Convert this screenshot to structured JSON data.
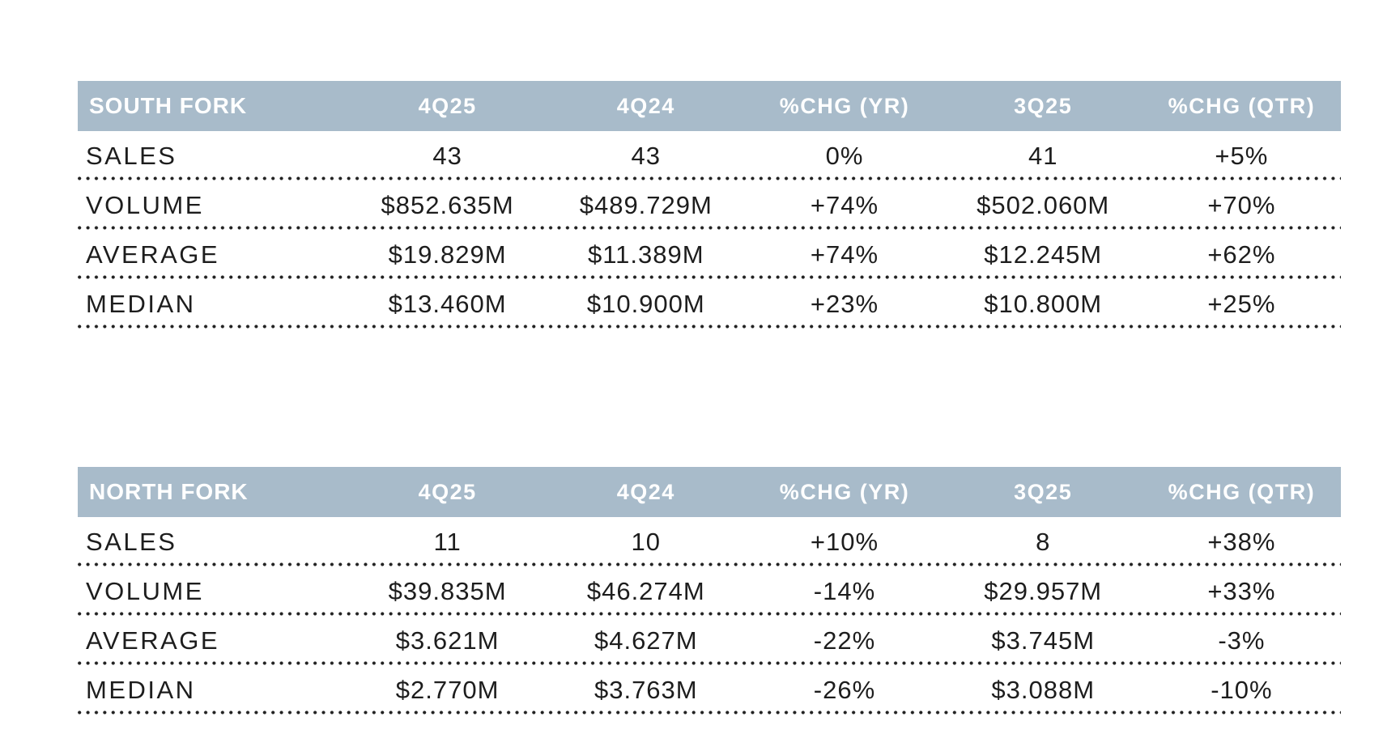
{
  "colors": {
    "page_bg": "#ffffff",
    "header_bg": "#a8bbca",
    "header_text": "#ffffff",
    "body_text": "#1d1d1d",
    "dots": "#222222"
  },
  "chart_data": [
    {
      "type": "table",
      "title": "SOUTH FORK",
      "columns": [
        "4Q25",
        "4Q24",
        "%CHG (YR)",
        "3Q25",
        "%CHG (QTR)"
      ],
      "rows": [
        {
          "label": "SALES",
          "values": [
            "43",
            "43",
            "0%",
            "41",
            "+5%"
          ]
        },
        {
          "label": "VOLUME",
          "values": [
            "$852.635M",
            "$489.729M",
            "+74%",
            "$502.060M",
            "+70%"
          ]
        },
        {
          "label": "AVERAGE",
          "values": [
            "$19.829M",
            "$11.389M",
            "+74%",
            "$12.245M",
            "+62%"
          ]
        },
        {
          "label": "MEDIAN",
          "values": [
            "$13.460M",
            "$10.900M",
            "+23%",
            "$10.800M",
            "+25%"
          ]
        }
      ]
    },
    {
      "type": "table",
      "title": "NORTH FORK",
      "columns": [
        "4Q25",
        "4Q24",
        "%CHG (YR)",
        "3Q25",
        "%CHG (QTR)"
      ],
      "rows": [
        {
          "label": "SALES",
          "values": [
            "11",
            "10",
            "+10%",
            "8",
            "+38%"
          ]
        },
        {
          "label": "VOLUME",
          "values": [
            "$39.835M",
            "$46.274M",
            "-14%",
            "$29.957M",
            "+33%"
          ]
        },
        {
          "label": "AVERAGE",
          "values": [
            "$3.621M",
            "$4.627M",
            "-22%",
            "$3.745M",
            "-3%"
          ]
        },
        {
          "label": "MEDIAN",
          "values": [
            "$2.770M",
            "$3.763M",
            "-26%",
            "$3.088M",
            "-10%"
          ]
        }
      ]
    }
  ]
}
